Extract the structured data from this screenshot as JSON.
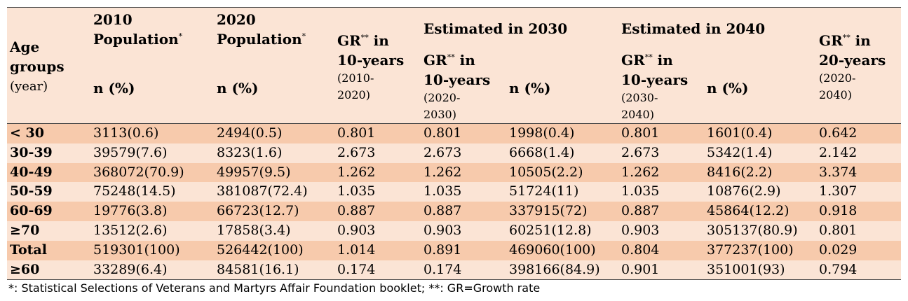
{
  "header": {
    "age_line1": "Age",
    "age_line2": "groups",
    "age_unit": "(year)",
    "pop2010_line1": "2010",
    "pop2010_line2": "Population",
    "pop2020_line1": "2020",
    "pop2020_line2": "Population",
    "star1": "*",
    "star2": "**",
    "n_pct": "n (%)",
    "gr_label": "GR",
    "in": " in",
    "ten_years": "10-years",
    "twenty_years": "20-years",
    "range_2010_a": "(2010-",
    "range_2010_b": "2020)",
    "est_2030": "Estimated in 2030",
    "est_2040": "Estimated in 2040",
    "range_2020_a": "(2020-",
    "range_2030_b": "2030)",
    "range_2030_a": "(2030-",
    "range_2040_b": "2040)",
    "range_2020_2040_a": "(2020-",
    "range_2020_2040_b": "2040)"
  },
  "rows": [
    {
      "age": "< 30",
      "p2010": "3113(0.6)",
      "p2020": "2494(0.5)",
      "gr10": "0.801",
      "gr2030": "0.801",
      "n2030": "1998(0.4)",
      "gr2040": "0.801",
      "n2040": "1601(0.4)",
      "gr20": "0.642"
    },
    {
      "age": "30-39",
      "p2010": "39579(7.6)",
      "p2020": "8323(1.6)",
      "gr10": "2.673",
      "gr2030": "2.673",
      "n2030": "6668(1.4)",
      "gr2040": "2.673",
      "n2040": "5342(1.4)",
      "gr20": "2.142"
    },
    {
      "age": "40-49",
      "p2010": "368072(70.9)",
      "p2020": "49957(9.5)",
      "gr10": "1.262",
      "gr2030": "1.262",
      "n2030": "10505(2.2)",
      "gr2040": "1.262",
      "n2040": "8416(2.2)",
      "gr20": "3.374"
    },
    {
      "age": "50-59",
      "p2010": "75248(14.5)",
      "p2020": "381087(72.4)",
      "gr10": "1.035",
      "gr2030": "1.035",
      "n2030": "51724(11)",
      "gr2040": "1.035",
      "n2040": "10876(2.9)",
      "gr20": "1.307"
    },
    {
      "age": "60-69",
      "p2010": "19776(3.8)",
      "p2020": "66723(12.7)",
      "gr10": "0.887",
      "gr2030": "0.887",
      "n2030": "337915(72)",
      "gr2040": "0.887",
      "n2040": "45864(12.2)",
      "gr20": "0.918"
    },
    {
      "age": "≥70",
      "p2010": "13512(2.6)",
      "p2020": "17858(3.4)",
      "gr10": "0.903",
      "gr2030": "0.903",
      "n2030": "60251(12.8)",
      "gr2040": "0.903",
      "n2040": "305137(80.9)",
      "gr20": "0.801"
    },
    {
      "age": "Total",
      "p2010": "519301(100)",
      "p2020": "526442(100)",
      "gr10": "1.014",
      "gr2030": "0.891",
      "n2030": "469060(100)",
      "gr2040": "0.804",
      "n2040": "377237(100)",
      "gr20": "0.029"
    },
    {
      "age": "≥60",
      "p2010": "33289(6.4)",
      "p2020": "84581(16.1)",
      "gr10": "0.174",
      "gr2030": "0.174",
      "n2030": "398166(84.9)",
      "gr2040": "0.901",
      "n2040": "351001(93)",
      "gr20": "0.794"
    }
  ],
  "footnote": "*: Statistical Selections of Veterans and Martyrs Affair Foundation booklet;     **: GR=Growth rate",
  "colors": {
    "header_bg": "#fbe4d5",
    "row_dark": "#f7caac",
    "row_light": "#fbe4d5"
  }
}
